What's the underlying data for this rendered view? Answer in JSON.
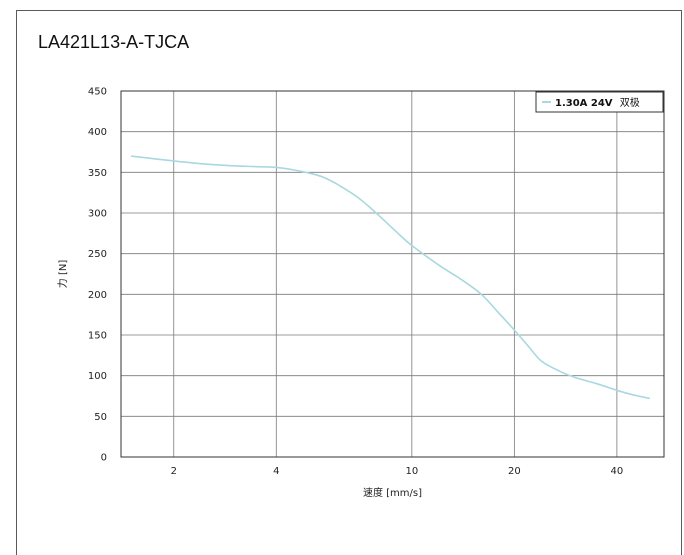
{
  "page": {
    "title": "LA421L13-A-TJCA"
  },
  "chart_data": {
    "type": "line",
    "x_scale": "log",
    "xlabel": "速度 [mm/s]",
    "ylabel": "力 [N]",
    "xlim": [
      1.4,
      55
    ],
    "ylim": [
      0,
      450
    ],
    "x_ticks": [
      2,
      4,
      10,
      20,
      40
    ],
    "y_ticks": [
      0,
      50,
      100,
      150,
      200,
      250,
      300,
      350,
      400,
      450
    ],
    "grid": true,
    "legend_position": "top-right",
    "series": [
      {
        "name": "1.30A 24V 双极",
        "name_bold": "1.30A 24V",
        "name_suffix": "双极",
        "color": "#a8d8e0",
        "x": [
          1.5,
          2.0,
          2.5,
          3.0,
          3.5,
          4.0,
          4.5,
          5.0,
          5.5,
          6.0,
          7.0,
          8.0,
          9.0,
          10.0,
          12.0,
          14.0,
          16.0,
          18.0,
          20.0,
          22.0,
          24.0,
          27.0,
          30.0,
          35.0,
          40.0,
          45.0,
          50.0
        ],
        "y": [
          370,
          364,
          360,
          358,
          357,
          356,
          353,
          349,
          344,
          336,
          318,
          297,
          277,
          260,
          236,
          218,
          200,
          177,
          156,
          136,
          118,
          106,
          98,
          90,
          82,
          76,
          72
        ]
      }
    ]
  }
}
